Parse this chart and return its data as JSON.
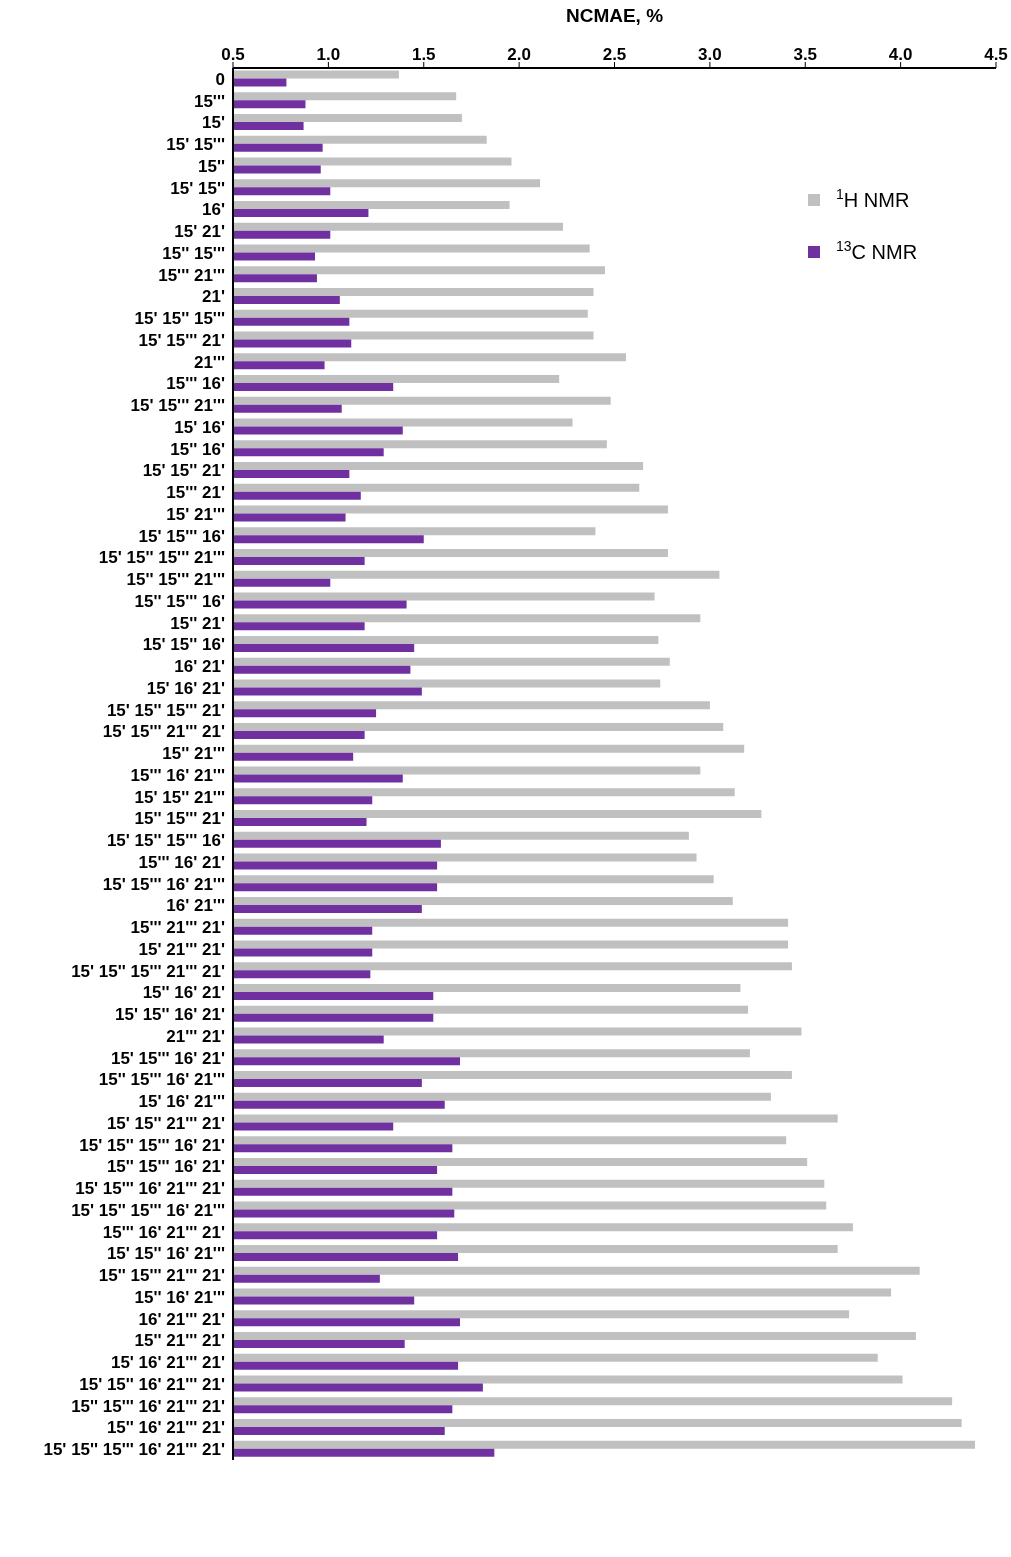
{
  "chart_data": {
    "type": "bar",
    "orientation": "horizontal",
    "xlabel": "NCMAE, %",
    "categories": [
      "0",
      "15'''",
      "15'",
      "15' 15'''",
      "15''",
      "15' 15''",
      "16'",
      "15' 21'",
      "15'' 15'''",
      "15''' 21'''",
      "21'",
      "15' 15'' 15'''",
      "15' 15''' 21'",
      "21'''",
      "15''' 16'",
      "15' 15''' 21'''",
      "15' 16'",
      "15'' 16'",
      "15' 15'' 21'",
      "15''' 21'",
      "15' 21'''",
      "15' 15''' 16'",
      "15' 15'' 15''' 21'''",
      "15'' 15''' 21'''",
      "15'' 15''' 16'",
      "15'' 21'",
      "15' 15'' 16'",
      "16' 21'",
      "15' 16' 21'",
      "15' 15'' 15''' 21'",
      "15' 15''' 21''' 21'",
      "15'' 21'''",
      "15''' 16' 21'''",
      "15' 15'' 21'''",
      "15'' 15''' 21'",
      "15' 15'' 15''' 16'",
      "15''' 16' 21'",
      "15' 15''' 16' 21'''",
      "16' 21'''",
      "15''' 21''' 21'",
      "15' 21''' 21'",
      "15' 15'' 15''' 21''' 21'",
      "15'' 16' 21'",
      "15' 15'' 16' 21'",
      "21''' 21'",
      "15' 15''' 16' 21'",
      "15'' 15''' 16' 21'''",
      "15' 16' 21'''",
      "15' 15'' 21''' 21'",
      "15' 15'' 15''' 16' 21'",
      "15'' 15''' 16' 21'",
      "15' 15''' 16' 21''' 21'",
      "15' 15'' 15''' 16' 21'''",
      "15''' 16' 21''' 21'",
      "15' 15'' 16' 21'''",
      "15'' 15''' 21''' 21'",
      "15'' 16' 21'''",
      "16' 21''' 21'",
      "15'' 21''' 21'",
      "15' 16' 21''' 21'",
      "15' 15'' 16' 21''' 21'",
      "15'' 15''' 16' 21''' 21'",
      "15'' 16' 21''' 21'",
      "15' 15'' 15''' 16' 21''' 21'"
    ],
    "series": [
      {
        "name": "$^{1}$H NMR",
        "color": "#c0c0c0",
        "values": [
          1.37,
          1.67,
          1.7,
          1.83,
          1.96,
          2.11,
          1.95,
          2.23,
          2.37,
          2.45,
          2.39,
          2.36,
          2.39,
          2.56,
          2.21,
          2.48,
          2.28,
          2.46,
          2.65,
          2.63,
          2.78,
          2.4,
          2.78,
          3.05,
          2.71,
          2.95,
          2.73,
          2.79,
          2.74,
          3.0,
          3.07,
          3.18,
          2.95,
          3.13,
          3.27,
          2.89,
          2.93,
          3.02,
          3.12,
          3.41,
          3.41,
          3.43,
          3.16,
          3.2,
          3.48,
          3.21,
          3.43,
          3.32,
          3.67,
          3.4,
          3.51,
          3.6,
          3.61,
          3.75,
          3.67,
          4.1,
          3.95,
          3.73,
          4.08,
          3.88,
          4.01,
          4.27,
          4.32,
          4.39
        ]
      },
      {
        "name": "$^{13}$C NMR",
        "color": "#7030a0",
        "values": [
          0.78,
          0.88,
          0.87,
          0.97,
          0.96,
          1.01,
          1.21,
          1.01,
          0.93,
          0.94,
          1.06,
          1.11,
          1.12,
          0.98,
          1.34,
          1.07,
          1.39,
          1.29,
          1.11,
          1.17,
          1.09,
          1.5,
          1.19,
          1.01,
          1.41,
          1.19,
          1.45,
          1.43,
          1.49,
          1.25,
          1.19,
          1.13,
          1.39,
          1.23,
          1.2,
          1.59,
          1.57,
          1.57,
          1.49,
          1.23,
          1.23,
          1.22,
          1.55,
          1.55,
          1.29,
          1.69,
          1.49,
          1.61,
          1.34,
          1.65,
          1.57,
          1.65,
          1.66,
          1.57,
          1.68,
          1.27,
          1.45,
          1.69,
          1.4,
          1.68,
          1.81,
          1.65,
          1.61,
          1.87
        ]
      }
    ],
    "xlim": [
      0.5,
      4.5
    ],
    "xticks": [
      0.5,
      {
        "value": 1,
        "label": "1.0"
      },
      1.5,
      {
        "value": 2,
        "label": "2.0"
      },
      2.5,
      {
        "value": 3,
        "label": "3.0"
      },
      3.5,
      {
        "value": 4,
        "label": "4.0"
      },
      4.5
    ],
    "legend": "top right"
  }
}
